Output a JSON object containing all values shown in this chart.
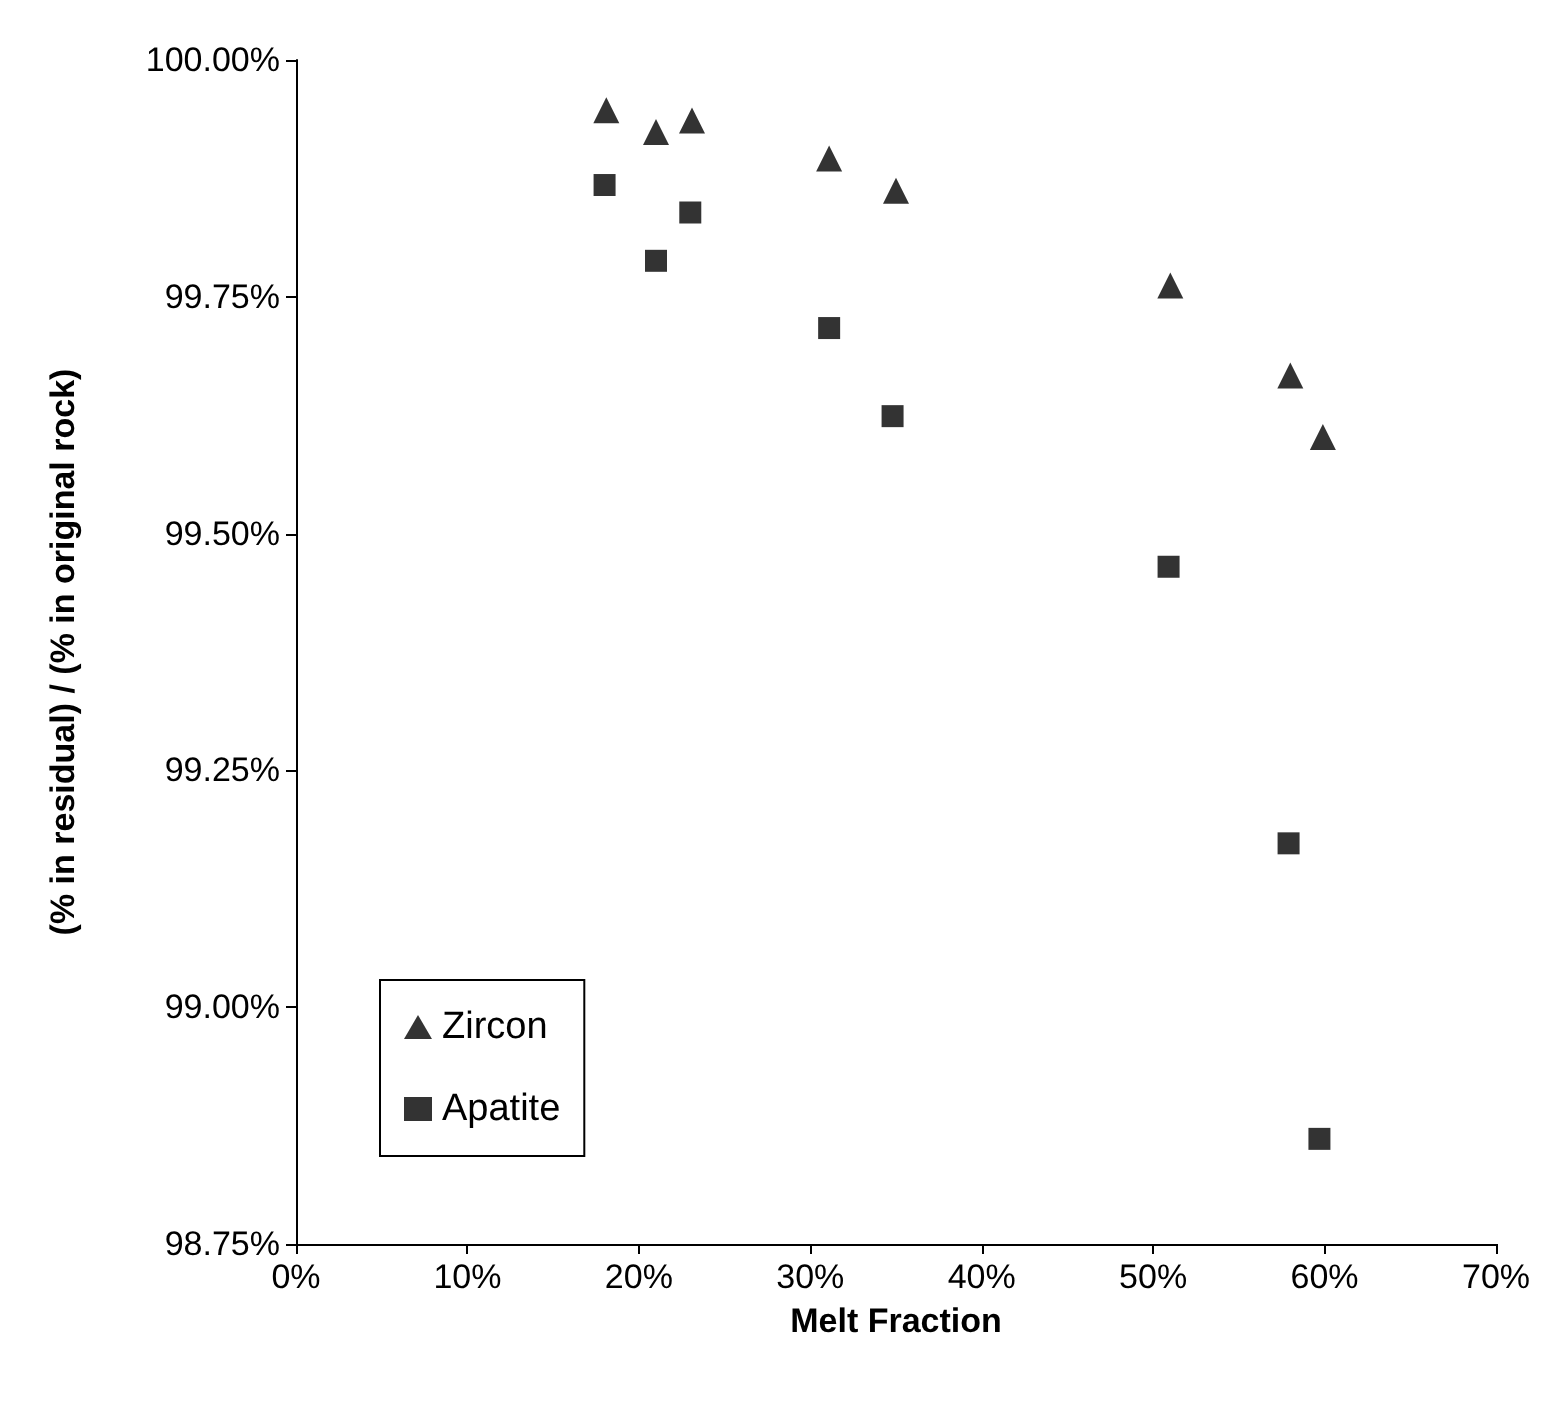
{
  "chart_data": {
    "type": "scatter",
    "xlabel": "Melt Fraction",
    "ylabel": "(% in residual) / (% in original rock)",
    "series": [
      {
        "name": "Zircon",
        "color": "#000000",
        "marker": "triangle",
        "x": [
          18.1,
          21.0,
          23.1,
          31.1,
          35.0,
          51.0,
          58.0,
          59.9
        ],
        "values": [
          99.947,
          99.924,
          99.936,
          99.896,
          99.862,
          99.762,
          99.667,
          99.602
        ]
      },
      {
        "name": "Apatite",
        "color": "#000000",
        "marker": "square",
        "x": [
          18.0,
          21.0,
          23.0,
          31.1,
          34.8,
          50.9,
          57.9,
          59.7
        ],
        "values": [
          99.868,
          99.788,
          99.839,
          99.717,
          99.624,
          99.465,
          99.173,
          98.861
        ]
      }
    ],
    "xlim": [
      0,
      70
    ],
    "xticks": [
      {
        "value": 0,
        "label": "0%"
      },
      {
        "value": 10,
        "label": "10%"
      },
      {
        "value": 20,
        "label": "20%"
      },
      {
        "value": 30,
        "label": "30%"
      },
      {
        "value": 40,
        "label": "40%"
      },
      {
        "value": 50,
        "label": "50%"
      },
      {
        "value": 60,
        "label": "60%"
      },
      {
        "value": 70,
        "label": "70%"
      }
    ],
    "ylim": [
      98.75,
      100
    ],
    "yticks": [
      {
        "value": 98.75,
        "label": "98.75%"
      },
      {
        "value": 99,
        "label": "99.00%"
      },
      {
        "value": 99.25,
        "label": "99.25%"
      },
      {
        "value": 99.5,
        "label": "99.50%"
      },
      {
        "value": 99.75,
        "label": "99.75%"
      },
      {
        "value": 100,
        "label": "100.00%"
      }
    ],
    "grid": false,
    "legend": "bottom left"
  }
}
